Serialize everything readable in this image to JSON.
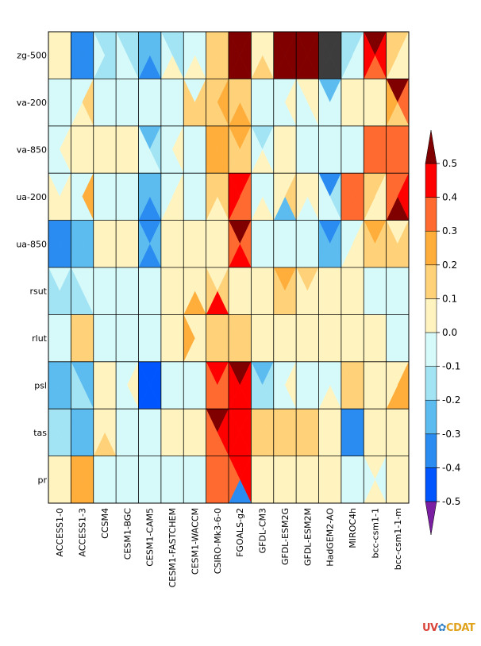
{
  "chart_data": {
    "type": "heatmap",
    "subtype": "portrait-plot-4-triangles",
    "title": "",
    "rows": [
      "zg-500",
      "va-200",
      "va-850",
      "ua-200",
      "ua-850",
      "rsut",
      "rlut",
      "psl",
      "tas",
      "pr"
    ],
    "columns": [
      "ACCESS1-0",
      "ACCESS1-3",
      "CCSM4",
      "CESM1-BGC",
      "CESM1-CAM5",
      "CESM1-FASTCHEM",
      "CESM1-WACCM",
      "CSIRO-Mk3-6-0",
      "FGOALS-g2",
      "GFDL-CM3",
      "GFDL-ESM2G",
      "GFDL-ESM2M",
      "HadGEM2-AO",
      "MIROC4h",
      "bcc-csm1-1",
      "bcc-csm1-1-m"
    ],
    "triangle_order": [
      "top",
      "right",
      "bottom",
      "left"
    ],
    "values": [
      [
        [
          0.05,
          0.05,
          0.05,
          0.05
        ],
        [
          -0.4,
          -0.4,
          -0.35,
          -0.35
        ],
        [
          -0.2,
          -0.15,
          -0.15,
          -0.1
        ],
        [
          -0.15,
          -0.15,
          -0.1,
          -0.1
        ],
        [
          -0.25,
          -0.25,
          -0.35,
          -0.25
        ],
        [
          -0.15,
          -0.15,
          0.05,
          -0.1
        ],
        [
          -0.05,
          -0.1,
          0.05,
          -0.1
        ],
        [
          0.15,
          0.15,
          0.15,
          0.15
        ],
        [
          0.6,
          0.6,
          0.6,
          0.6
        ],
        [
          0.05,
          0.05,
          0.15,
          0.05
        ],
        [
          0.6,
          0.6,
          0.6,
          0.6
        ],
        [
          0.6,
          0.6,
          0.6,
          0.6
        ],
        [
          "missing",
          "missing",
          "missing",
          "missing"
        ],
        [
          -0.15,
          -0.1,
          -0.1,
          -0.15
        ],
        [
          0.6,
          0.45,
          0.35,
          0.45
        ],
        [
          0.15,
          0.05,
          0.05,
          0.15
        ]
      ],
      [
        [
          -0.05,
          -0.05,
          -0.05,
          -0.05
        ],
        [
          -0.05,
          0.15,
          0.05,
          -0.05
        ],
        [
          -0.05,
          -0.05,
          -0.05,
          -0.05
        ],
        [
          -0.05,
          -0.05,
          -0.1,
          -0.05
        ],
        [
          -0.05,
          -0.05,
          -0.05,
          -0.05
        ],
        [
          -0.05,
          -0.05,
          -0.05,
          -0.05
        ],
        [
          -0.05,
          0.15,
          0.15,
          0.15
        ],
        [
          0.15,
          0.25,
          0.15,
          0.15
        ],
        [
          0.15,
          0.15,
          0.25,
          0.15
        ],
        [
          -0.05,
          -0.05,
          -0.05,
          -0.05
        ],
        [
          -0.05,
          0.05,
          -0.05,
          -0.05
        ],
        [
          0.05,
          0.05,
          -0.05,
          -0.05
        ],
        [
          -0.25,
          -0.1,
          -0.05,
          -0.05
        ],
        [
          0.05,
          0.05,
          0.05,
          0.05
        ],
        [
          0.05,
          0.05,
          0.05,
          0.05
        ],
        [
          0.6,
          0.35,
          0.15,
          0.25
        ]
      ],
      [
        [
          -0.05,
          0.05,
          -0.05,
          -0.05
        ],
        [
          0.05,
          0.05,
          0.05,
          0.05
        ],
        [
          0.05,
          0.05,
          0.05,
          0.05
        ],
        [
          0.05,
          0.05,
          0.05,
          0.05
        ],
        [
          -0.25,
          -0.15,
          -0.1,
          -0.1
        ],
        [
          -0.05,
          0.05,
          -0.05,
          -0.05
        ],
        [
          -0.05,
          -0.05,
          -0.05,
          -0.05
        ],
        [
          0.25,
          0.25,
          0.25,
          0.25
        ],
        [
          0.25,
          0.15,
          0.15,
          0.15
        ],
        [
          -0.15,
          -0.05,
          0.05,
          -0.05
        ],
        [
          0.05,
          0.05,
          0.05,
          0.05
        ],
        [
          -0.05,
          -0.05,
          -0.05,
          -0.05
        ],
        [
          -0.05,
          -0.05,
          -0.05,
          -0.05
        ],
        [
          -0.05,
          -0.05,
          -0.05,
          -0.05
        ],
        [
          0.35,
          0.35,
          0.35,
          0.35
        ],
        [
          0.35,
          0.35,
          0.35,
          0.35
        ]
      ],
      [
        [
          -0.05,
          0.05,
          0.05,
          0.05
        ],
        [
          -0.05,
          0.25,
          -0.05,
          -0.05
        ],
        [
          -0.05,
          -0.05,
          -0.05,
          -0.05
        ],
        [
          -0.05,
          -0.05,
          -0.05,
          -0.05
        ],
        [
          -0.25,
          -0.25,
          -0.35,
          -0.25
        ],
        [
          -0.05,
          0.05,
          0.05,
          -0.05
        ],
        [
          -0.05,
          -0.05,
          -0.05,
          -0.05
        ],
        [
          0.15,
          0.15,
          0.05,
          0.15
        ],
        [
          0.45,
          0.35,
          0.35,
          0.45
        ],
        [
          -0.05,
          -0.05,
          0.05,
          -0.05
        ],
        [
          0.05,
          0.15,
          -0.25,
          0.05
        ],
        [
          0.05,
          0.05,
          -0.05,
          0.05
        ],
        [
          -0.35,
          -0.15,
          -0.05,
          -0.05
        ],
        [
          0.35,
          0.35,
          0.35,
          0.35
        ],
        [
          0.15,
          0.05,
          0.05,
          0.15
        ],
        [
          0.35,
          0.45,
          0.6,
          0.35
        ]
      ],
      [
        [
          -0.35,
          -0.35,
          -0.35,
          -0.35
        ],
        [
          -0.25,
          -0.25,
          -0.25,
          -0.25
        ],
        [
          0.05,
          0.05,
          0.05,
          0.05
        ],
        [
          0.05,
          0.05,
          0.05,
          0.05
        ],
        [
          -0.35,
          -0.25,
          -0.35,
          -0.25
        ],
        [
          0.05,
          0.05,
          0.05,
          0.05
        ],
        [
          0.05,
          0.05,
          0.05,
          0.05
        ],
        [
          0.05,
          0.05,
          0.05,
          0.05
        ],
        [
          0.6,
          0.35,
          0.45,
          0.35
        ],
        [
          -0.05,
          -0.05,
          -0.05,
          -0.05
        ],
        [
          -0.05,
          -0.05,
          -0.05,
          -0.05
        ],
        [
          -0.05,
          -0.05,
          -0.05,
          -0.05
        ],
        [
          -0.35,
          -0.25,
          -0.25,
          -0.25
        ],
        [
          -0.05,
          0.05,
          0.05,
          -0.05
        ],
        [
          0.25,
          0.15,
          0.15,
          0.15
        ],
        [
          0.05,
          0.15,
          0.15,
          0.15
        ]
      ],
      [
        [
          -0.1,
          -0.15,
          -0.15,
          -0.15
        ],
        [
          -0.05,
          -0.1,
          -0.15,
          -0.15
        ],
        [
          -0.05,
          -0.1,
          -0.1,
          -0.05
        ],
        [
          -0.05,
          -0.05,
          -0.05,
          -0.05
        ],
        [
          -0.1,
          -0.1,
          -0.1,
          -0.1
        ],
        [
          0.05,
          0.05,
          0.05,
          0.05
        ],
        [
          0.05,
          0.05,
          0.25,
          0.05
        ],
        [
          0.05,
          0.15,
          0.45,
          0.15
        ],
        [
          0.05,
          0.05,
          0.05,
          0.05
        ],
        [
          0.05,
          0.05,
          0.05,
          0.05
        ],
        [
          0.25,
          0.15,
          0.15,
          0.15
        ],
        [
          0.15,
          0.05,
          0.05,
          0.05
        ],
        [
          0.05,
          0.05,
          0.05,
          0.05
        ],
        [
          0.05,
          0.05,
          0.05,
          0.05
        ],
        [
          -0.05,
          -0.05,
          -0.05,
          -0.05
        ],
        [
          -0.05,
          -0.05,
          -0.05,
          -0.05
        ]
      ],
      [
        [
          -0.05,
          -0.05,
          -0.05,
          -0.05
        ],
        [
          0.15,
          0.15,
          0.15,
          0.15
        ],
        [
          -0.05,
          -0.05,
          -0.05,
          -0.05
        ],
        [
          -0.05,
          -0.05,
          -0.05,
          -0.05
        ],
        [
          -0.05,
          -0.05,
          -0.05,
          -0.05
        ],
        [
          0.05,
          0.05,
          0.05,
          0.05
        ],
        [
          0.05,
          0.05,
          0.05,
          0.25
        ],
        [
          0.15,
          0.15,
          0.15,
          0.15
        ],
        [
          0.15,
          0.15,
          0.15,
          0.15
        ],
        [
          0.05,
          0.05,
          0.05,
          0.05
        ],
        [
          0.05,
          0.05,
          0.05,
          0.05
        ],
        [
          0.05,
          0.05,
          0.05,
          0.05
        ],
        [
          0.05,
          0.05,
          0.05,
          0.05
        ],
        [
          0.05,
          0.05,
          0.05,
          0.05
        ],
        [
          0.05,
          0.05,
          0.05,
          0.05
        ],
        [
          -0.05,
          -0.05,
          -0.05,
          -0.05
        ]
      ],
      [
        [
          -0.25,
          -0.25,
          -0.25,
          -0.25
        ],
        [
          -0.25,
          -0.25,
          -0.15,
          -0.15
        ],
        [
          0.05,
          0.05,
          0.05,
          0.05
        ],
        [
          -0.05,
          0.05,
          -0.05,
          -0.05
        ],
        [
          -0.45,
          -0.45,
          -0.45,
          -0.45
        ],
        [
          -0.05,
          -0.05,
          -0.05,
          -0.05
        ],
        [
          -0.05,
          -0.05,
          -0.05,
          -0.05
        ],
        [
          0.45,
          0.35,
          0.35,
          0.35
        ],
        [
          0.6,
          0.45,
          0.45,
          0.45
        ],
        [
          -0.25,
          -0.15,
          -0.15,
          -0.15
        ],
        [
          -0.05,
          0.05,
          -0.05,
          -0.05
        ],
        [
          -0.05,
          -0.05,
          -0.05,
          -0.05
        ],
        [
          -0.05,
          -0.05,
          0.05,
          -0.05
        ],
        [
          0.15,
          0.15,
          0.15,
          0.15
        ],
        [
          0.05,
          0.05,
          0.05,
          0.05
        ],
        [
          0.05,
          0.25,
          0.25,
          0.05
        ]
      ],
      [
        [
          -0.15,
          -0.15,
          -0.15,
          -0.15
        ],
        [
          -0.25,
          -0.25,
          -0.25,
          -0.25
        ],
        [
          0.05,
          0.05,
          0.15,
          0.05
        ],
        [
          -0.05,
          -0.05,
          -0.05,
          -0.05
        ],
        [
          -0.05,
          -0.05,
          -0.05,
          -0.05
        ],
        [
          0.05,
          0.05,
          0.05,
          0.05
        ],
        [
          0.05,
          0.05,
          0.05,
          0.05
        ],
        [
          0.6,
          0.45,
          0.35,
          0.35
        ],
        [
          0.45,
          0.45,
          0.45,
          0.45
        ],
        [
          0.15,
          0.15,
          0.15,
          0.15
        ],
        [
          0.15,
          0.15,
          0.15,
          0.15
        ],
        [
          0.15,
          0.15,
          0.15,
          0.15
        ],
        [
          0.05,
          0.05,
          0.05,
          0.05
        ],
        [
          -0.35,
          -0.35,
          -0.35,
          -0.35
        ],
        [
          0.05,
          0.05,
          0.05,
          0.05
        ],
        [
          0.05,
          0.05,
          0.05,
          0.05
        ]
      ],
      [
        [
          0.05,
          0.05,
          0.05,
          0.05
        ],
        [
          0.25,
          0.25,
          0.25,
          0.25
        ],
        [
          -0.05,
          -0.05,
          -0.05,
          -0.05
        ],
        [
          -0.05,
          -0.05,
          -0.05,
          -0.05
        ],
        [
          -0.05,
          -0.05,
          -0.05,
          -0.05
        ],
        [
          -0.05,
          -0.05,
          -0.05,
          -0.05
        ],
        [
          -0.05,
          -0.05,
          -0.05,
          -0.05
        ],
        [
          0.35,
          0.35,
          0.35,
          0.35
        ],
        [
          0.45,
          0.45,
          -0.35,
          0.35
        ],
        [
          0.05,
          0.05,
          0.05,
          0.05
        ],
        [
          0.05,
          0.05,
          0.05,
          0.05
        ],
        [
          0.05,
          0.05,
          0.05,
          0.05
        ],
        [
          0.05,
          0.05,
          0.05,
          0.05
        ],
        [
          -0.05,
          -0.05,
          -0.05,
          -0.05
        ],
        [
          0.05,
          -0.05,
          0.05,
          -0.05
        ],
        [
          0.05,
          0.05,
          0.05,
          0.05
        ]
      ]
    ],
    "colorbar": {
      "ticks": [
        "0.5",
        "0.4",
        "0.3",
        "0.2",
        "0.1",
        "0.0",
        "-0.1",
        "-0.2",
        "-0.3",
        "-0.4",
        "-0.5"
      ],
      "levels": [
        -0.5,
        -0.4,
        -0.3,
        -0.2,
        -0.1,
        0.0,
        0.1,
        0.2,
        0.3,
        0.4,
        0.5
      ],
      "colors": [
        "#0055ff",
        "#2a8cf0",
        "#5cbcf0",
        "#a3e4f4",
        "#d6fafa",
        "#fff4c0",
        "#ffd27a",
        "#ffae3c",
        "#ff6a30",
        "#ff0000"
      ],
      "under_color": "#7a1fa2",
      "over_color": "#800000",
      "missing_color": "#3c3c3c",
      "extend": "both",
      "orientation": "vertical"
    },
    "grid": true,
    "legend_position": "right"
  },
  "logo": {
    "part1": "UV",
    "part2": "✿",
    "part3": "CDAT"
  }
}
